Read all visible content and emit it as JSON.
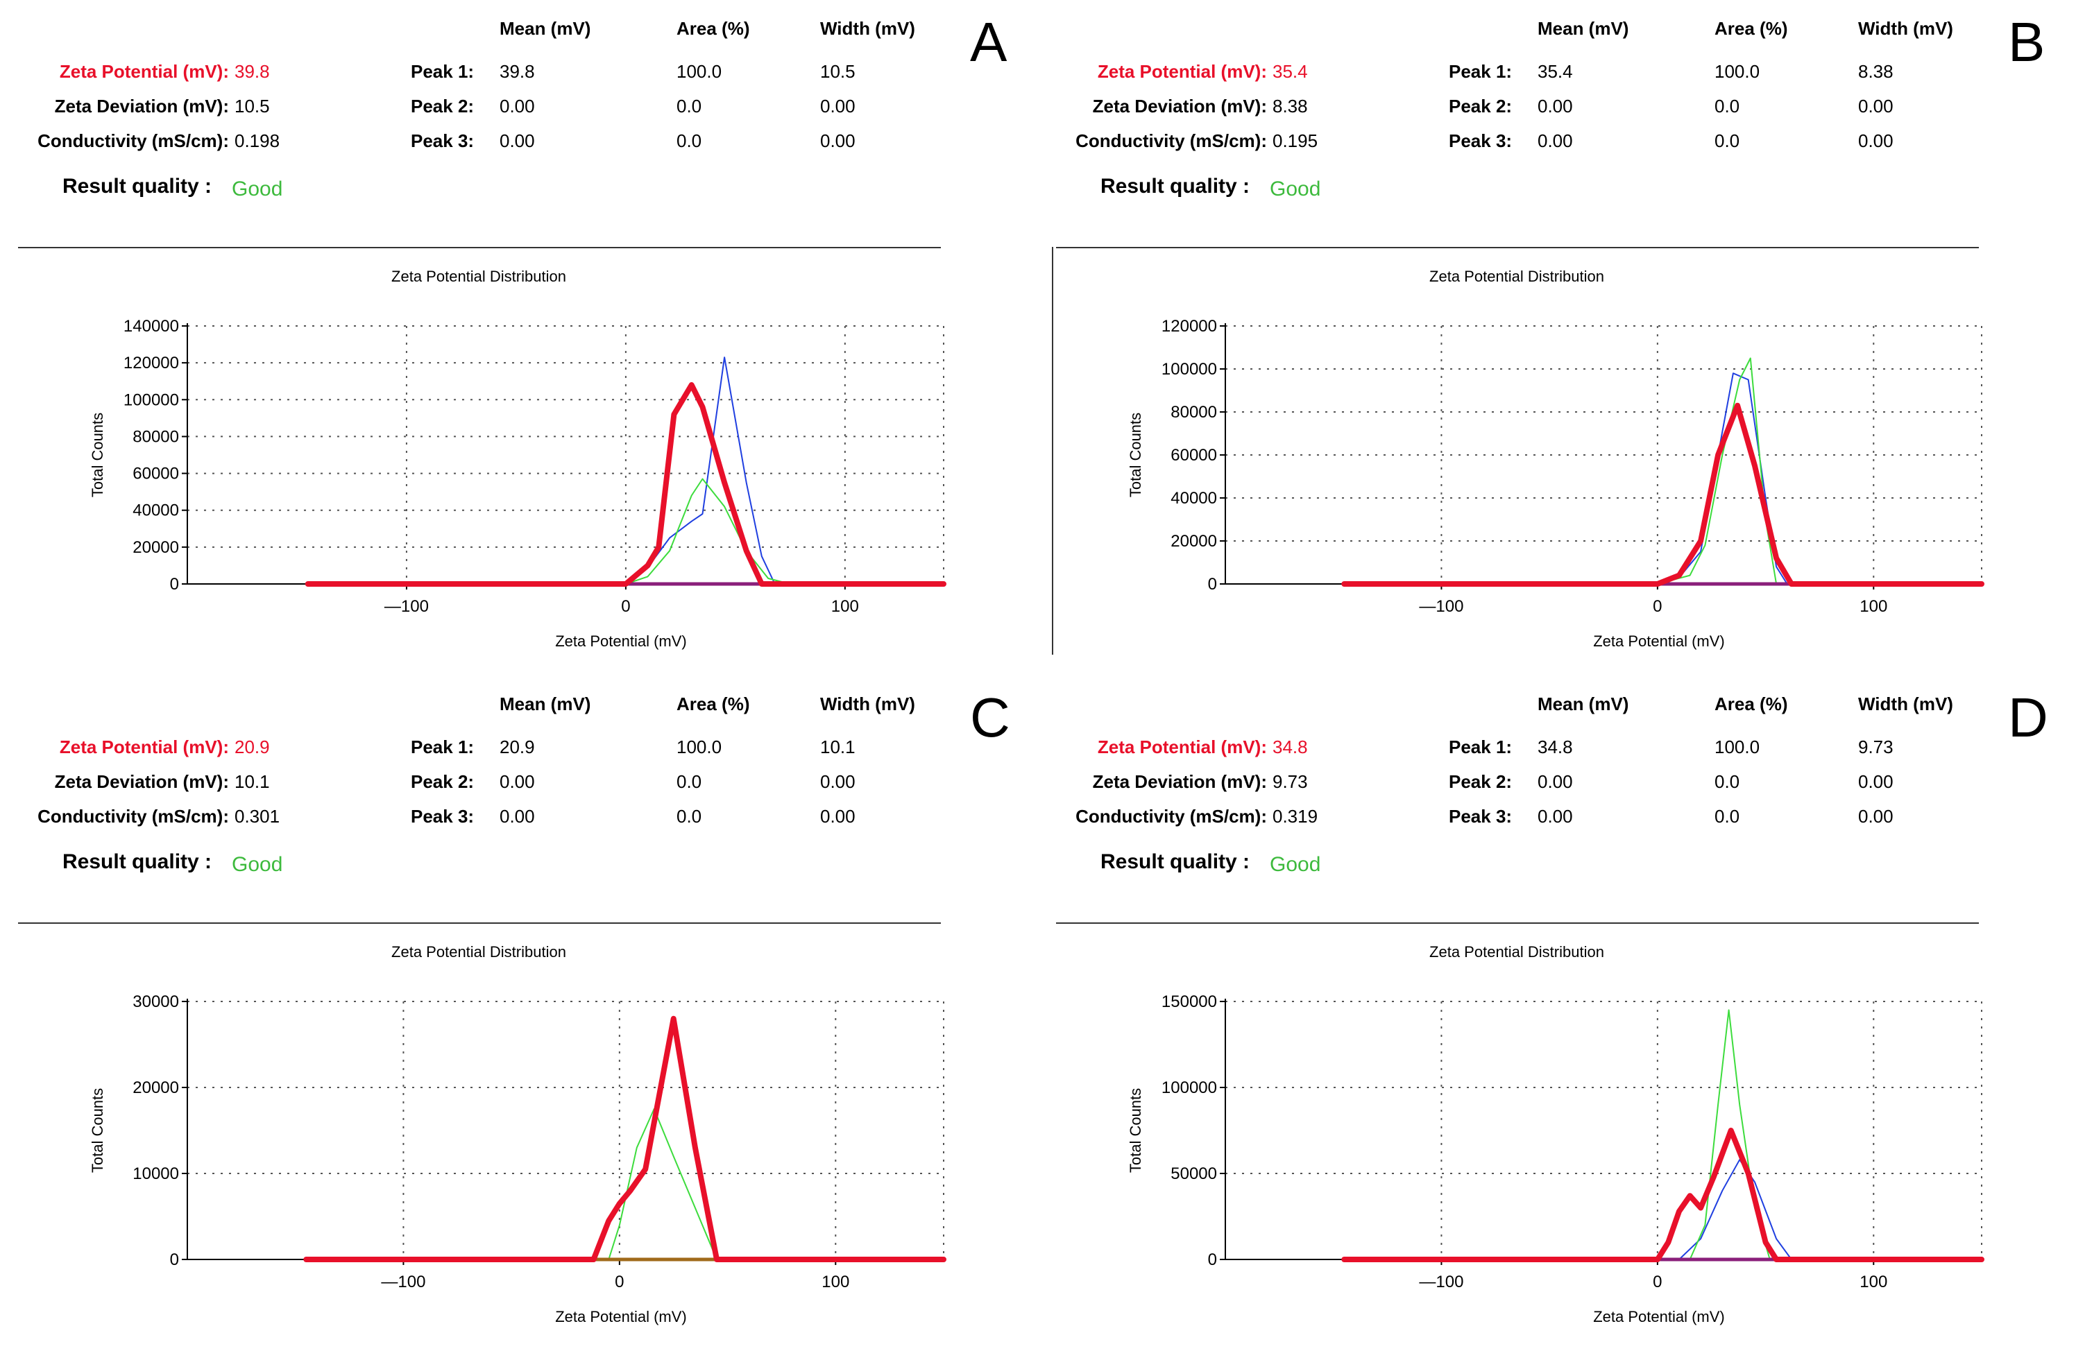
{
  "chart_data": [
    {
      "type": "line",
      "panel_letter": "A",
      "title": "Zeta Potential Distribution",
      "xlabel": "Zeta Potential (mV)",
      "ylabel": "Total Counts",
      "xlim": [
        -200,
        145
      ],
      "ylim": [
        0,
        140000
      ],
      "xticks": [
        -100,
        0,
        100
      ],
      "xtick_labels": [
        "—100",
        "0",
        "100"
      ],
      "yticks": [
        0,
        20000,
        40000,
        60000,
        80000,
        100000,
        120000,
        140000
      ],
      "grid": true,
      "results": {
        "zeta_potential_label": "Zeta Potential (mV):",
        "zeta_potential": "39.8",
        "zeta_deviation_label": "Zeta Deviation (mV):",
        "zeta_deviation": "10.5",
        "conductivity_label": "Conductivity (mS/cm):",
        "conductivity": "0.198",
        "result_quality_label": "Result quality :",
        "result_quality": "Good"
      },
      "peaks_table": {
        "headers": [
          "Mean (mV)",
          "Area (%)",
          "Width (mV)"
        ],
        "rows": [
          {
            "label": "Peak 1:",
            "mean": "39.8",
            "area": "100.0",
            "width": "10.5"
          },
          {
            "label": "Peak 2:",
            "mean": "0.00",
            "area": "0.0",
            "width": "0.00"
          },
          {
            "label": "Peak 3:",
            "mean": "0.00",
            "area": "0.0",
            "width": "0.00"
          }
        ]
      },
      "series": [
        {
          "name": "run-blue",
          "color": "#1f3fe0",
          "width": 2,
          "x": [
            -145,
            0,
            10,
            20,
            30,
            35,
            45,
            55,
            62,
            68,
            145
          ],
          "y": [
            0,
            0,
            9000,
            25000,
            34000,
            38000,
            123000,
            55000,
            15000,
            0,
            0
          ]
        },
        {
          "name": "run-green",
          "color": "#3ddc3d",
          "width": 2,
          "x": [
            -145,
            0,
            10,
            20,
            30,
            35,
            45,
            55,
            65,
            75,
            145
          ],
          "y": [
            0,
            0,
            4000,
            18000,
            48000,
            57000,
            42000,
            18000,
            3000,
            0,
            0
          ]
        },
        {
          "name": "run-purple",
          "color": "#8a1f7a",
          "width": 5,
          "x": [
            -145,
            0,
            145
          ],
          "y": [
            0,
            0,
            0
          ]
        },
        {
          "name": "average",
          "color": "#e8102a",
          "width": 8,
          "x": [
            -145,
            0,
            5,
            10,
            15,
            22,
            30,
            35,
            45,
            55,
            62,
            145
          ],
          "y": [
            0,
            0,
            5000,
            10000,
            20000,
            92000,
            108000,
            96000,
            55000,
            18000,
            0,
            0
          ]
        }
      ]
    },
    {
      "type": "line",
      "panel_letter": "B",
      "title": "Zeta Potential Distribution",
      "xlabel": "Zeta Potential (mV)",
      "ylabel": "Total Counts",
      "xlim": [
        -200,
        150
      ],
      "ylim": [
        0,
        120000
      ],
      "xticks": [
        -100,
        0,
        100
      ],
      "xtick_labels": [
        "—100",
        "0",
        "100"
      ],
      "yticks": [
        0,
        20000,
        40000,
        60000,
        80000,
        100000,
        120000
      ],
      "grid": true,
      "results": {
        "zeta_potential_label": "Zeta Potential (mV):",
        "zeta_potential": "35.4",
        "zeta_deviation_label": "Zeta Deviation (mV):",
        "zeta_deviation": "8.38",
        "conductivity_label": "Conductivity (mS/cm):",
        "conductivity": "0.195",
        "result_quality_label": "Result quality :",
        "result_quality": "Good"
      },
      "peaks_table": {
        "headers": [
          "Mean (mV)",
          "Area (%)",
          "Width (mV)"
        ],
        "rows": [
          {
            "label": "Peak 1:",
            "mean": "35.4",
            "area": "100.0",
            "width": "8.38"
          },
          {
            "label": "Peak 2:",
            "mean": "0.00",
            "area": "0.0",
            "width": "0.00"
          },
          {
            "label": "Peak 3:",
            "mean": "0.00",
            "area": "0.0",
            "width": "0.00"
          }
        ]
      },
      "series": [
        {
          "name": "run-blue",
          "color": "#1f3fe0",
          "width": 2,
          "x": [
            -145,
            0,
            10,
            20,
            28,
            35,
            42,
            50,
            55,
            60,
            150
          ],
          "y": [
            0,
            0,
            3000,
            15000,
            60000,
            98000,
            95000,
            40000,
            8000,
            0,
            0
          ]
        },
        {
          "name": "run-green",
          "color": "#3ddc3d",
          "width": 2,
          "x": [
            -145,
            0,
            15,
            22,
            30,
            38,
            43,
            50,
            55,
            150
          ],
          "y": [
            0,
            0,
            4000,
            18000,
            60000,
            95000,
            105000,
            30000,
            0,
            0
          ]
        },
        {
          "name": "run-purple",
          "color": "#8a1f7a",
          "width": 5,
          "x": [
            -145,
            0,
            150
          ],
          "y": [
            0,
            0,
            0
          ]
        },
        {
          "name": "average",
          "color": "#e8102a",
          "width": 8,
          "x": [
            -145,
            0,
            10,
            20,
            28,
            37,
            45,
            55,
            62,
            150
          ],
          "y": [
            0,
            0,
            4000,
            20000,
            60000,
            83000,
            55000,
            12000,
            0,
            0
          ]
        }
      ]
    },
    {
      "type": "line",
      "panel_letter": "C",
      "title": "Zeta Potential Distribution",
      "xlabel": "Zeta Potential (mV)",
      "ylabel": "Total Counts",
      "xlim": [
        -200,
        150
      ],
      "ylim": [
        0,
        30000
      ],
      "xticks": [
        -100,
        0,
        100
      ],
      "xtick_labels": [
        "—100",
        "0",
        "100"
      ],
      "yticks": [
        0,
        10000,
        20000,
        30000
      ],
      "grid": true,
      "results": {
        "zeta_potential_label": "Zeta Potential (mV):",
        "zeta_potential": "20.9",
        "zeta_deviation_label": "Zeta Deviation (mV):",
        "zeta_deviation": "10.1",
        "conductivity_label": "Conductivity (mS/cm):",
        "conductivity": "0.301",
        "result_quality_label": "Result quality :",
        "result_quality": "Good"
      },
      "peaks_table": {
        "headers": [
          "Mean (mV)",
          "Area (%)",
          "Width (mV)"
        ],
        "rows": [
          {
            "label": "Peak 1:",
            "mean": "20.9",
            "area": "100.0",
            "width": "10.1"
          },
          {
            "label": "Peak 2:",
            "mean": "0.00",
            "area": "0.0",
            "width": "0.00"
          },
          {
            "label": "Peak 3:",
            "mean": "0.00",
            "area": "0.0",
            "width": "0.00"
          }
        ]
      },
      "series": [
        {
          "name": "run-green",
          "color": "#3ddc3d",
          "width": 2,
          "x": [
            -145,
            -5,
            0,
            8,
            16,
            25,
            35,
            45,
            150
          ],
          "y": [
            0,
            0,
            4000,
            13000,
            17500,
            12000,
            6000,
            0,
            0
          ]
        },
        {
          "name": "run-olive",
          "color": "#a06a1a",
          "width": 5,
          "x": [
            -145,
            -10,
            150
          ],
          "y": [
            0,
            0,
            0
          ]
        },
        {
          "name": "average",
          "color": "#e8102a",
          "width": 8,
          "x": [
            -145,
            -12,
            -5,
            0,
            5,
            12,
            25,
            35,
            45,
            150
          ],
          "y": [
            0,
            0,
            4500,
            6500,
            8000,
            10500,
            28000,
            13000,
            0,
            0
          ]
        }
      ]
    },
    {
      "type": "line",
      "panel_letter": "D",
      "title": "Zeta Potential Distribution",
      "xlabel": "Zeta Potential (mV)",
      "ylabel": "Total Counts",
      "xlim": [
        -200,
        150
      ],
      "ylim": [
        0,
        150000
      ],
      "xticks": [
        -100,
        0,
        100
      ],
      "xtick_labels": [
        "—100",
        "0",
        "100"
      ],
      "yticks": [
        0,
        50000,
        100000,
        150000
      ],
      "grid": true,
      "results": {
        "zeta_potential_label": "Zeta Potential (mV):",
        "zeta_potential": "34.8",
        "zeta_deviation_label": "Zeta Deviation (mV):",
        "zeta_deviation": "9.73",
        "conductivity_label": "Conductivity (mS/cm):",
        "conductivity": "0.319",
        "result_quality_label": "Result quality :",
        "result_quality": "Good"
      },
      "peaks_table": {
        "headers": [
          "Mean (mV)",
          "Area (%)",
          "Width (mV)"
        ],
        "rows": [
          {
            "label": "Peak 1:",
            "mean": "34.8",
            "area": "100.0",
            "width": "9.73"
          },
          {
            "label": "Peak 2:",
            "mean": "0.00",
            "area": "0.0",
            "width": "0.00"
          },
          {
            "label": "Peak 3:",
            "mean": "0.00",
            "area": "0.0",
            "width": "0.00"
          }
        ]
      },
      "series": [
        {
          "name": "run-blue",
          "color": "#1f3fe0",
          "width": 2,
          "x": [
            -145,
            10,
            20,
            30,
            38,
            45,
            55,
            62,
            150
          ],
          "y": [
            0,
            0,
            12000,
            40000,
            58000,
            45000,
            12000,
            0,
            0
          ]
        },
        {
          "name": "run-green",
          "color": "#3ddc3d",
          "width": 2,
          "x": [
            -145,
            15,
            22,
            28,
            33,
            38,
            45,
            52,
            150
          ],
          "y": [
            0,
            0,
            20000,
            90000,
            145000,
            90000,
            30000,
            0,
            0
          ]
        },
        {
          "name": "run-purple",
          "color": "#8a1f7a",
          "width": 5,
          "x": [
            -145,
            0,
            150
          ],
          "y": [
            0,
            0,
            0
          ]
        },
        {
          "name": "average",
          "color": "#e8102a",
          "width": 8,
          "x": [
            -145,
            0,
            5,
            10,
            15,
            20,
            26,
            34,
            42,
            50,
            55,
            150
          ],
          "y": [
            0,
            0,
            10000,
            28000,
            37000,
            30000,
            48000,
            75000,
            50000,
            10000,
            0,
            0
          ]
        }
      ]
    }
  ]
}
